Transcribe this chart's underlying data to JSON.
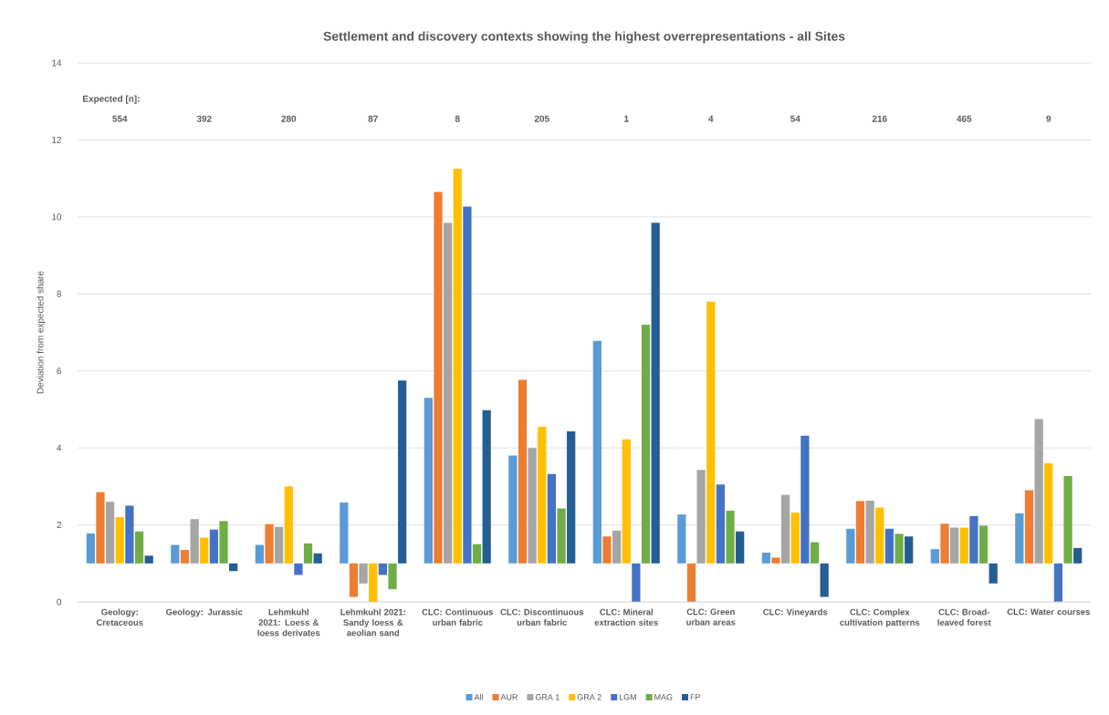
{
  "chart_data": {
    "type": "bar",
    "title": "Settlement and discovery contexts showing the highest overrepresentations - all Sites",
    "ylabel": "Deviation from expected share",
    "categories": [
      "Geology: Cretaceous",
      "Geology: Jurassic",
      "Lehmkuhl 2021: Loess & loess derivates",
      "Lehmkuhl 2021: Sandy loess & aeolian sand",
      "CLC: Continuous urban fabric",
      "CLC: Discontinuous urban fabric",
      "CLC: Mineral extraction sites",
      "CLC: Green urban areas",
      "CLC: Vineyards",
      "CLC: Complex cultivation patterns",
      "CLC: Broad-leaved forest",
      "CLC: Water courses"
    ],
    "series": [
      {
        "name": "All",
        "color": "#5b9bd5",
        "base": [
          1,
          1,
          1,
          1,
          1,
          1,
          1,
          1,
          1,
          1,
          1,
          1
        ],
        "values": [
          0.78,
          0.48,
          0.48,
          1.58,
          4.3,
          2.8,
          5.78,
          1.27,
          0.28,
          0.9,
          0.37,
          1.3
        ]
      },
      {
        "name": "AUR",
        "color": "#ed7d31",
        "base": [
          1,
          1,
          1,
          1,
          1,
          1,
          1,
          1,
          1,
          1,
          1,
          1
        ],
        "values": [
          1.85,
          0.35,
          1.02,
          -0.87,
          9.65,
          4.77,
          0.7,
          -1,
          0.15,
          1.62,
          1.03,
          1.9
        ]
      },
      {
        "name": "GRA 1",
        "color": "#a5a5a5",
        "base": [
          1,
          1,
          1,
          1,
          1,
          1,
          1,
          1,
          1,
          1,
          1,
          1
        ],
        "values": [
          1.6,
          1.15,
          0.95,
          -0.52,
          8.85,
          3.0,
          0.85,
          2.43,
          1.78,
          1.63,
          0.93,
          3.75
        ]
      },
      {
        "name": "GRA 2",
        "color": "#ffc000",
        "base": [
          1,
          1,
          1,
          1,
          1,
          1,
          1,
          1,
          1,
          1,
          1,
          1
        ],
        "values": [
          1.2,
          0.67,
          2.0,
          -1,
          10.25,
          3.55,
          3.22,
          6.8,
          1.32,
          1.45,
          0.93,
          2.6
        ]
      },
      {
        "name": "LGM",
        "color": "#4472c4",
        "base": [
          1,
          1,
          1,
          1,
          1,
          1,
          1,
          1,
          1,
          1,
          1,
          1
        ],
        "values": [
          1.5,
          0.88,
          -0.3,
          -0.3,
          9.27,
          2.32,
          -1,
          2.05,
          3.32,
          0.9,
          1.23,
          -1
        ]
      },
      {
        "name": "MAG",
        "color": "#70ad47",
        "base": [
          1,
          1,
          1,
          1,
          1,
          1,
          1,
          1,
          1,
          1,
          1,
          1
        ],
        "values": [
          0.83,
          1.1,
          0.52,
          -0.67,
          0.5,
          1.43,
          6.2,
          1.37,
          0.55,
          0.77,
          0.98,
          2.27
        ]
      },
      {
        "name": "FP",
        "color": "#255e91",
        "base": [
          1,
          1,
          1,
          1,
          1,
          1,
          1,
          1,
          1,
          1,
          1,
          1
        ],
        "values": [
          0.2,
          -0.2,
          0.26,
          4.75,
          3.98,
          3.43,
          8.85,
          0.83,
          -0.87,
          0.7,
          -0.52,
          0.4
        ]
      }
    ],
    "ylim": [
      0,
      14
    ],
    "yticks": [
      0,
      2,
      4,
      6,
      8,
      10,
      12,
      14
    ],
    "grid": "y",
    "legend": "bottom",
    "annotations": [
      "Expected [n]:",
      "554",
      "392",
      "280",
      "87",
      "8",
      "205",
      "1",
      "4",
      "54",
      "216",
      "465",
      "9"
    ]
  }
}
